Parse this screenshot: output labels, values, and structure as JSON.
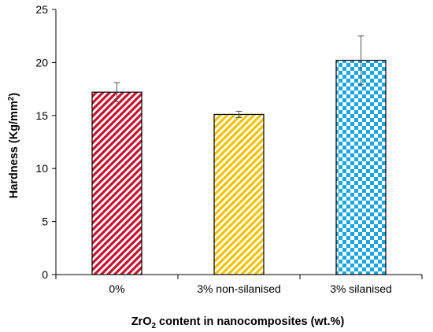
{
  "chart_data": {
    "type": "bar",
    "categories": [
      "0%",
      "3% non-silanised",
      "3% silanised"
    ],
    "values": [
      17.2,
      15.1,
      20.2
    ],
    "errors": [
      0.9,
      0.3,
      2.3
    ],
    "xlabel": {
      "prefix": "ZrO",
      "subscript": "2",
      "suffix": " content in nanocomposites (wt.%)"
    },
    "ylabel": {
      "prefix": "Hardness (Kg/mm",
      "superscript": "2",
      "suffix": ")"
    },
    "ylim": [
      0,
      25
    ],
    "yticks": [
      0,
      5,
      10,
      15,
      20,
      25
    ],
    "grid": false,
    "bar_styles": [
      {
        "pattern": "diagonal-stripes",
        "color": "#c8102e"
      },
      {
        "pattern": "diagonal-stripes",
        "color": "#f2c200"
      },
      {
        "pattern": "checkerboard",
        "color": "#1aa6e0"
      }
    ]
  }
}
